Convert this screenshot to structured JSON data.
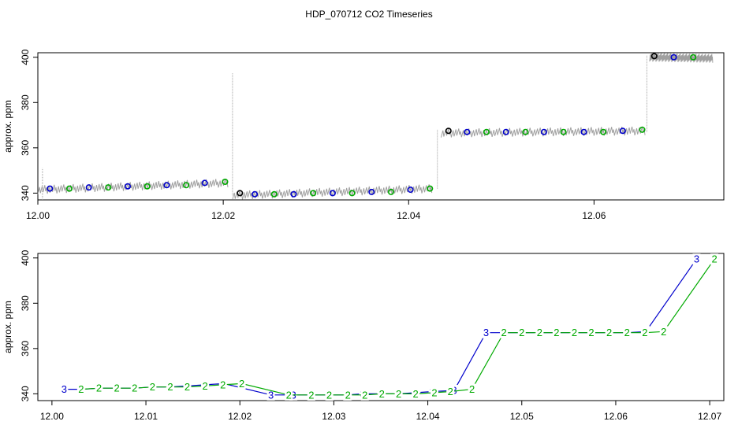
{
  "title": "HDP_070712  CO2 Timeseries",
  "colors": {
    "raw": "#a0a0a0",
    "blue": "#0000cc",
    "green": "#00aa00",
    "black": "#000000",
    "axis": "#000000"
  },
  "chart_data": [
    {
      "type": "scatter",
      "ylabel": "approx. ppm",
      "xlim": [
        12.0,
        12.074
      ],
      "ylim": [
        337,
        402
      ],
      "x_ticks": [
        "12.00",
        "12.02",
        "12.04",
        "12.06"
      ],
      "y_ticks": [
        "340",
        "360",
        "380",
        "400"
      ],
      "raw_segments": [
        {
          "x0": 12.0,
          "x1": 12.0205,
          "y0": 341.5,
          "y1": 344.5
        },
        {
          "x0": 12.021,
          "x1": 12.0425,
          "y0": 339.0,
          "y1": 342.0
        },
        {
          "x0": 12.0435,
          "x1": 12.0655,
          "y0": 366.5,
          "y1": 367.5
        },
        {
          "x0": 12.066,
          "x1": 12.0728,
          "y0": 400.0,
          "y1": 399.5
        }
      ],
      "spikes": [
        {
          "x": 12.0005,
          "y0": 337,
          "y1": 351
        },
        {
          "x": 12.021,
          "y0": 339,
          "y1": 393
        },
        {
          "x": 12.0431,
          "y0": 342,
          "y1": 368
        },
        {
          "x": 12.0657,
          "y0": 367,
          "y1": 401
        }
      ],
      "series": [
        {
          "color_key": "blue",
          "x": [
            12.0013,
            12.0055,
            12.0097,
            12.0139,
            12.018,
            12.0234,
            12.0276,
            12.0318,
            12.036,
            12.0402,
            12.0463,
            12.0505,
            12.0546,
            12.0589,
            12.0631,
            12.0686
          ],
          "y": [
            342,
            342.5,
            343,
            343.5,
            344.5,
            339.5,
            339.5,
            340,
            340.5,
            341.5,
            367,
            367,
            367,
            367,
            367.5,
            400
          ]
        },
        {
          "color_key": "green",
          "x": [
            12.0034,
            12.0076,
            12.0118,
            12.016,
            12.0202,
            12.0255,
            12.0297,
            12.0339,
            12.0381,
            12.0423,
            12.0484,
            12.0526,
            12.0567,
            12.061,
            12.0652,
            12.0707
          ],
          "y": [
            342,
            342.5,
            343,
            343.5,
            345,
            339.5,
            340,
            340,
            340.5,
            342,
            367,
            367,
            367,
            367,
            368,
            400
          ]
        },
        {
          "color_key": "black",
          "x": [
            12.0218,
            12.0443,
            12.0665
          ],
          "y": [
            340,
            367.5,
            400.5
          ]
        }
      ]
    },
    {
      "type": "line",
      "ylabel": "approx. ppm",
      "xlim": [
        11.9985,
        12.0715
      ],
      "ylim": [
        337,
        402
      ],
      "x_ticks": [
        "12.00",
        "12.01",
        "12.02",
        "12.03",
        "12.04",
        "12.05",
        "12.06",
        "12.07"
      ],
      "y_ticks": [
        "340",
        "360",
        "380",
        "400"
      ],
      "series": [
        {
          "label": "3",
          "color_key": "blue",
          "x": [
            12.0013,
            12.0032,
            12.005,
            12.0069,
            12.0088,
            12.0106,
            12.0125,
            12.0144,
            12.0163,
            12.0183,
            12.0233,
            12.0257,
            12.0276,
            12.0296,
            12.0314,
            12.0331,
            12.035,
            12.0368,
            12.0388,
            12.0405,
            12.0428,
            12.0462,
            12.0481,
            12.05,
            12.0518,
            12.0537,
            12.0555,
            12.0574,
            12.0593,
            12.0612,
            12.0632,
            12.0686
          ],
          "y": [
            342,
            342,
            342.5,
            342.5,
            342.5,
            343,
            343,
            343.5,
            344,
            344.5,
            339.5,
            339.5,
            339.5,
            339.5,
            339.5,
            340,
            340,
            340,
            340.5,
            341,
            341.5,
            367,
            367,
            367,
            367,
            367,
            367,
            367,
            367,
            367,
            367.5,
            399.5
          ]
        },
        {
          "label": "2",
          "color_key": "green",
          "x": [
            12.0031,
            12.005,
            12.0069,
            12.0088,
            12.0107,
            12.0126,
            12.0144,
            12.0163,
            12.0182,
            12.0202,
            12.0252,
            12.0276,
            12.0295,
            12.0315,
            12.0333,
            12.0351,
            12.0369,
            12.0387,
            12.0407,
            12.0424,
            12.0447,
            12.0481,
            12.05,
            12.0519,
            12.0537,
            12.0556,
            12.0574,
            12.0593,
            12.0612,
            12.0631,
            12.0651,
            12.0705
          ],
          "y": [
            342,
            342.5,
            342.5,
            342.5,
            343,
            343,
            343,
            343.5,
            344,
            344.5,
            339.5,
            339.5,
            339.5,
            339.5,
            339.5,
            340,
            340,
            340,
            340.5,
            341,
            342,
            367,
            367,
            367,
            367,
            367,
            367,
            367,
            367,
            367,
            367.5,
            399.5
          ]
        }
      ]
    }
  ]
}
